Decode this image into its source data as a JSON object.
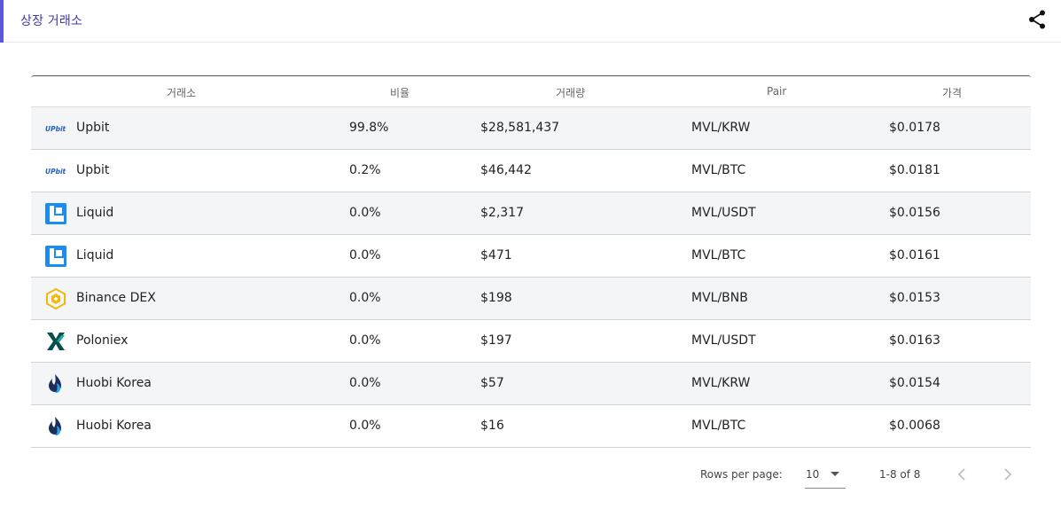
{
  "header": {
    "title": "상장 거래소",
    "share_icon": "share-icon",
    "accent_color": "#5b57d6"
  },
  "table": {
    "columns": [
      "거래소",
      "비율",
      "거래량",
      "Pair",
      "가격"
    ],
    "rows": [
      {
        "logo": "upbit-logo",
        "exchange": "Upbit",
        "ratio": "99.8%",
        "volume": "$28,581,437",
        "pair": "MVL/KRW",
        "price": "$0.0178"
      },
      {
        "logo": "upbit-logo",
        "exchange": "Upbit",
        "ratio": "0.2%",
        "volume": "$46,442",
        "pair": "MVL/BTC",
        "price": "$0.0181"
      },
      {
        "logo": "liquid-logo",
        "exchange": "Liquid",
        "ratio": "0.0%",
        "volume": "$2,317",
        "pair": "MVL/USDT",
        "price": "$0.0156"
      },
      {
        "logo": "liquid-logo",
        "exchange": "Liquid",
        "ratio": "0.0%",
        "volume": "$471",
        "pair": "MVL/BTC",
        "price": "$0.0161"
      },
      {
        "logo": "binance-dex-logo",
        "exchange": "Binance DEX",
        "ratio": "0.0%",
        "volume": "$198",
        "pair": "MVL/BNB",
        "price": "$0.0153"
      },
      {
        "logo": "poloniex-logo",
        "exchange": "Poloniex",
        "ratio": "0.0%",
        "volume": "$197",
        "pair": "MVL/USDT",
        "price": "$0.0163"
      },
      {
        "logo": "huobi-korea-logo",
        "exchange": "Huobi Korea",
        "ratio": "0.0%",
        "volume": "$57",
        "pair": "MVL/KRW",
        "price": "$0.0154"
      },
      {
        "logo": "huobi-korea-logo",
        "exchange": "Huobi Korea",
        "ratio": "0.0%",
        "volume": "$16",
        "pair": "MVL/BTC",
        "price": "$0.0068"
      }
    ]
  },
  "pagination": {
    "rows_per_page_label": "Rows per page:",
    "rows_per_page_value": "10",
    "range": "1-8 of 8",
    "prev_icon": "chevron-left-icon",
    "next_icon": "chevron-right-icon"
  }
}
